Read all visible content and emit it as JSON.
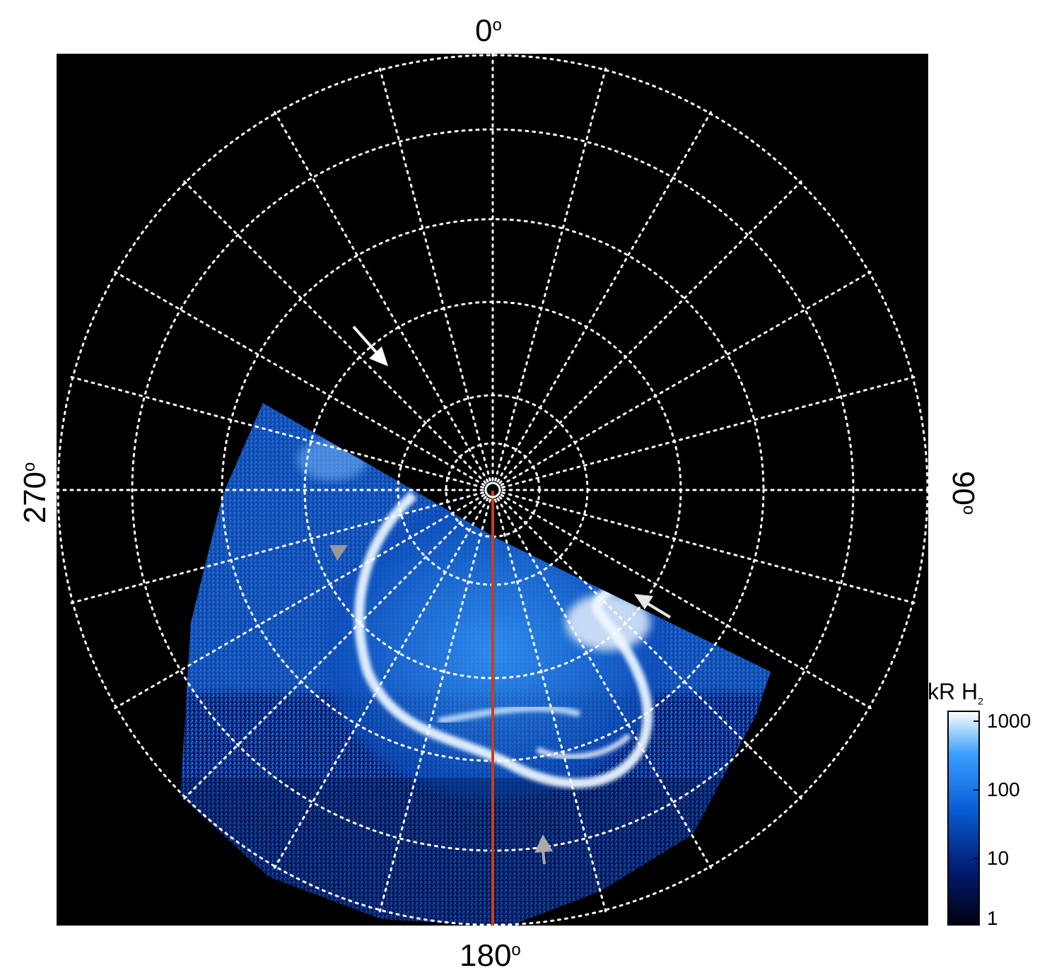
{
  "axis_labels": {
    "top": "0",
    "right": "90",
    "bottom": "180",
    "left": "270",
    "degree_symbol": "o"
  },
  "colorbar": {
    "title": "kR H",
    "title_subscript": "2",
    "ticks": [
      "1000",
      "100",
      "10",
      "1"
    ],
    "scale": "log",
    "colors": [
      "#000010",
      "#001a6e",
      "#0a5fd8",
      "#3aa0ff",
      "#ffffff"
    ]
  },
  "overlay": {
    "meridian_line_color": "#c8401a",
    "grid_color": "#ffffff",
    "background": "#000000"
  }
}
